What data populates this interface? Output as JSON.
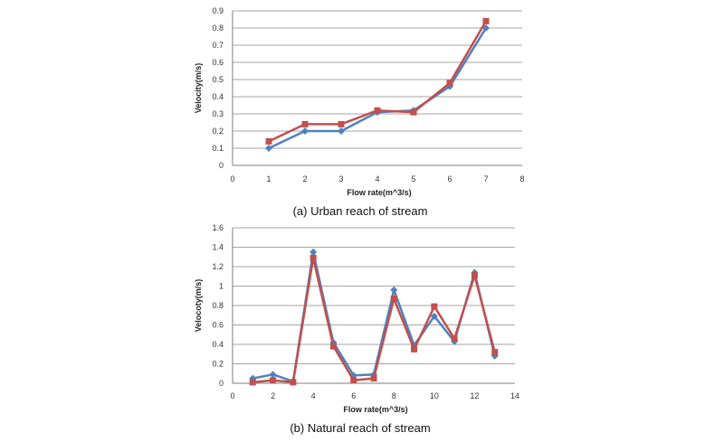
{
  "colors": {
    "series1": "#4f81bd",
    "series2": "#c0504d",
    "grid": "#a6a6a6",
    "axis": "#7f7f7f"
  },
  "chart_data": [
    {
      "type": "line",
      "caption": "(a) Urban reach of stream",
      "xlabel": "Flow rate(m^3/s)",
      "ylabel": "Velocity(m/s)",
      "xlim": [
        0,
        8
      ],
      "ylim": [
        0,
        0.9
      ],
      "xticks": [
        "0",
        "1",
        "2",
        "3",
        "4",
        "5",
        "6",
        "7",
        "8"
      ],
      "yticks": [
        "0",
        "0.1",
        "0.2",
        "0.3",
        "0.4",
        "0.5",
        "0.6",
        "0.7",
        "0.8",
        "0.9"
      ],
      "grid": "horizontal",
      "x": [
        1,
        2,
        3,
        4,
        5,
        6,
        7
      ],
      "series": [
        {
          "marker": "diamond",
          "values": [
            0.1,
            0.2,
            0.2,
            0.31,
            0.32,
            0.46,
            0.8
          ]
        },
        {
          "marker": "square",
          "values": [
            0.14,
            0.24,
            0.24,
            0.32,
            0.31,
            0.48,
            0.84
          ]
        }
      ]
    },
    {
      "type": "line",
      "caption": "(b) Natural reach of stream",
      "xlabel": "Flow rate(m^3/s)",
      "ylabel": "Velocoty(m/s)",
      "xlim": [
        0,
        14
      ],
      "ylim": [
        0,
        1.6
      ],
      "xticks": [
        "0",
        "2",
        "4",
        "6",
        "8",
        "10",
        "12",
        "14"
      ],
      "yticks": [
        "0",
        "0.2",
        "0.4",
        "0.6",
        "0.8",
        "1",
        "1.2",
        "1.4",
        "1.6"
      ],
      "grid": "horizontal",
      "x": [
        1,
        2,
        3,
        4,
        5,
        6,
        7,
        8,
        9,
        10,
        11,
        12,
        13
      ],
      "series": [
        {
          "marker": "diamond",
          "values": [
            0.05,
            0.09,
            0.02,
            1.35,
            0.42,
            0.08,
            0.09,
            0.96,
            0.39,
            0.69,
            0.43,
            1.14,
            0.28
          ]
        },
        {
          "marker": "square",
          "values": [
            0.01,
            0.03,
            0.01,
            1.29,
            0.38,
            0.03,
            0.05,
            0.87,
            0.35,
            0.79,
            0.46,
            1.11,
            0.32
          ]
        }
      ]
    }
  ]
}
